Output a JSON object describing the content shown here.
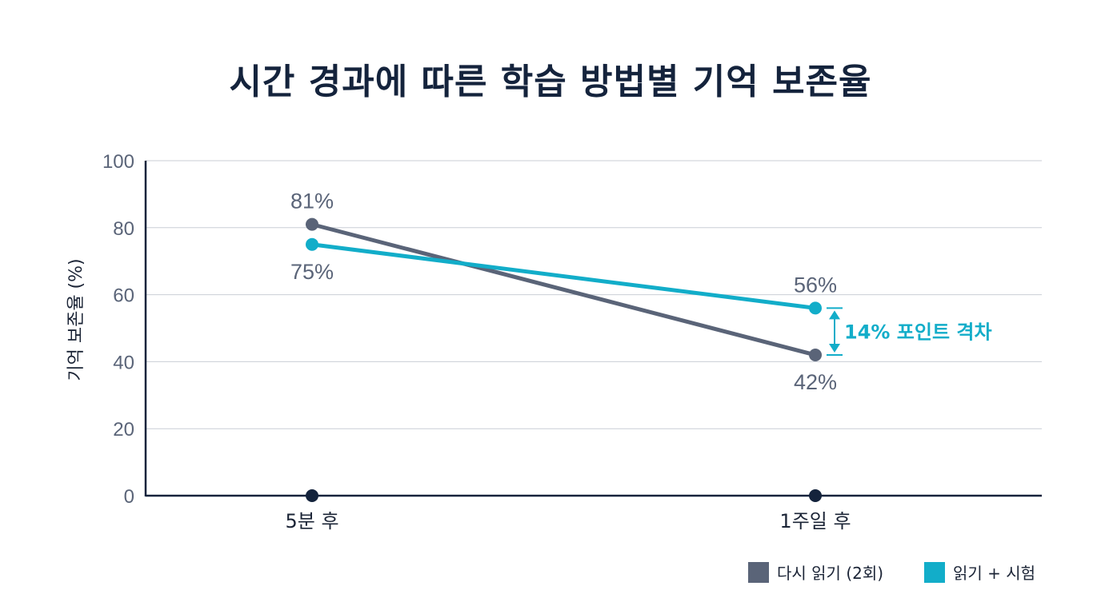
{
  "chart_data": {
    "type": "line",
    "title": "시간 경과에 따른 학습 방법별 기억 보존율",
    "ylabel": "기억 보존율 (%)",
    "xlabel": "",
    "categories": [
      "5분 후",
      "1주일 후"
    ],
    "ylim": [
      0,
      100
    ],
    "yticks": [
      "0",
      "20",
      "40",
      "60",
      "80",
      "100"
    ],
    "grid": true,
    "legend_position": "bottom-right",
    "series": [
      {
        "name": "다시 읽기 (2회)",
        "values": [
          81,
          42
        ],
        "labels": [
          "81%",
          "42%"
        ],
        "color": "#5a6478",
        "label_side": [
          "above",
          "below"
        ]
      },
      {
        "name": "읽기 + 시험",
        "values": [
          75,
          56
        ],
        "labels": [
          "75%",
          "56%"
        ],
        "color": "#12adc9",
        "label_side": [
          "below",
          "above"
        ]
      }
    ],
    "annotation": {
      "text": "14% 포인트 격차",
      "category": "1주일 후",
      "from": 56,
      "to": 42,
      "color": "#12adc9"
    }
  }
}
